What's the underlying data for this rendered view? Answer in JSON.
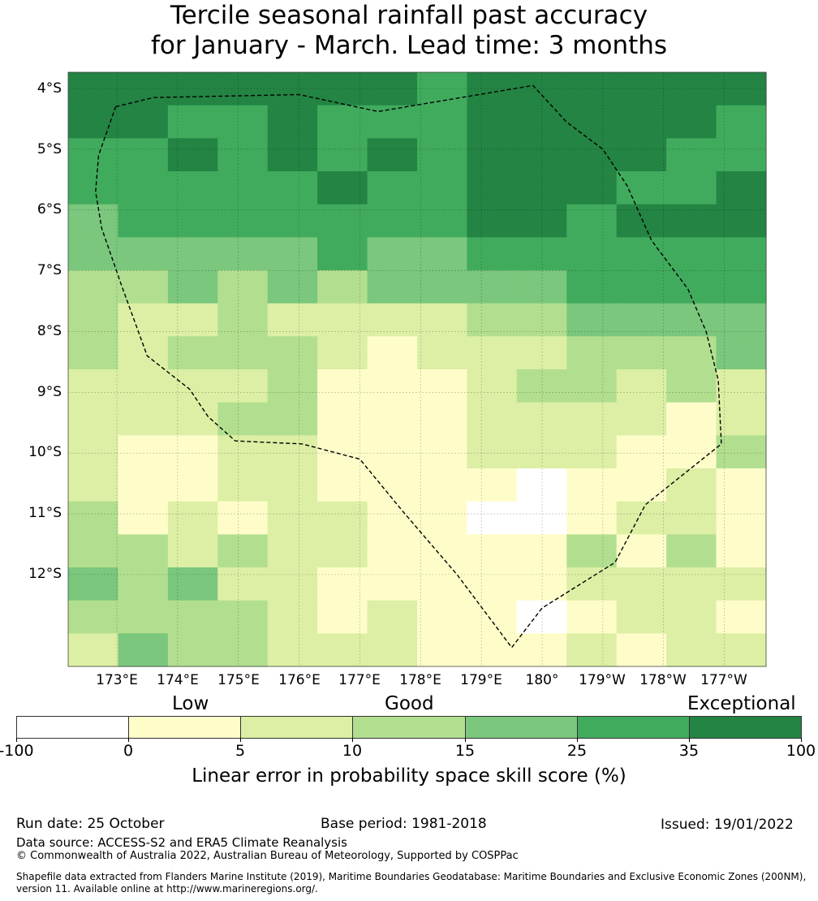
{
  "title": {
    "line1": "Tercile seasonal rainfall past accuracy",
    "line2": "for January - March. Lead time: 3 months"
  },
  "map": {
    "lat_labels": [
      "4°S",
      "5°S",
      "6°S",
      "7°S",
      "8°S",
      "9°S",
      "10°S",
      "11°S",
      "12°S"
    ],
    "lon_labels": [
      "173°E",
      "174°E",
      "175°E",
      "176°E",
      "177°E",
      "178°E",
      "179°E",
      "180°",
      "179°W",
      "178°W",
      "177°W"
    ],
    "bins_legend": "Each grid cell value is the colour-bin index 0..6 of the skill score",
    "grid": [
      [
        6,
        6,
        6,
        6,
        6,
        6,
        6,
        5,
        6,
        6,
        6,
        6,
        6,
        6
      ],
      [
        6,
        6,
        5,
        5,
        6,
        5,
        5,
        5,
        6,
        6,
        6,
        6,
        6,
        5
      ],
      [
        5,
        5,
        6,
        5,
        6,
        5,
        6,
        5,
        6,
        6,
        6,
        6,
        5,
        5
      ],
      [
        5,
        5,
        5,
        5,
        5,
        6,
        5,
        5,
        6,
        6,
        6,
        5,
        5,
        6
      ],
      [
        4,
        5,
        5,
        5,
        5,
        5,
        5,
        5,
        6,
        6,
        5,
        6,
        6,
        6
      ],
      [
        4,
        4,
        4,
        4,
        4,
        5,
        4,
        4,
        5,
        5,
        5,
        5,
        5,
        5
      ],
      [
        3,
        3,
        4,
        3,
        4,
        3,
        4,
        4,
        4,
        4,
        5,
        5,
        5,
        5
      ],
      [
        3,
        2,
        2,
        3,
        2,
        2,
        2,
        2,
        3,
        3,
        4,
        4,
        4,
        4
      ],
      [
        3,
        2,
        3,
        3,
        3,
        2,
        1,
        2,
        2,
        2,
        3,
        3,
        3,
        4
      ],
      [
        2,
        2,
        2,
        2,
        3,
        1,
        1,
        1,
        2,
        3,
        3,
        2,
        3,
        2
      ],
      [
        2,
        2,
        2,
        3,
        3,
        1,
        1,
        1,
        2,
        2,
        2,
        2,
        1,
        2
      ],
      [
        2,
        1,
        1,
        2,
        2,
        1,
        1,
        1,
        2,
        2,
        2,
        1,
        1,
        3
      ],
      [
        2,
        1,
        1,
        2,
        2,
        1,
        1,
        1,
        1,
        0,
        1,
        1,
        2,
        1
      ],
      [
        3,
        1,
        2,
        1,
        2,
        2,
        1,
        1,
        0,
        0,
        1,
        2,
        2,
        1
      ],
      [
        3,
        3,
        2,
        3,
        2,
        2,
        1,
        1,
        1,
        1,
        3,
        1,
        3,
        1
      ],
      [
        4,
        3,
        4,
        2,
        2,
        1,
        1,
        1,
        1,
        1,
        2,
        2,
        2,
        2
      ],
      [
        3,
        3,
        3,
        3,
        2,
        1,
        2,
        1,
        1,
        0,
        1,
        2,
        2,
        1
      ],
      [
        2,
        4,
        3,
        3,
        2,
        2,
        2,
        1,
        1,
        1,
        2,
        1,
        2,
        2
      ]
    ],
    "boundary_lonlat": [
      [
        172.98,
        -4.3
      ],
      [
        173.6,
        -4.15
      ],
      [
        176.0,
        -4.1
      ],
      [
        177.3,
        -4.38
      ],
      [
        179.85,
        -3.95
      ],
      [
        -179.6,
        -4.55
      ],
      [
        -179.0,
        -5.0
      ],
      [
        -178.6,
        -5.6
      ],
      [
        -178.2,
        -6.5
      ],
      [
        -177.6,
        -7.3
      ],
      [
        -177.3,
        -8.0
      ],
      [
        -177.1,
        -8.8
      ],
      [
        -177.05,
        -9.85
      ],
      [
        -178.3,
        -10.85
      ],
      [
        -178.8,
        -11.8
      ],
      [
        -180.0,
        -12.55
      ],
      [
        179.5,
        -13.2
      ],
      [
        178.6,
        -12.0
      ],
      [
        177.7,
        -10.95
      ],
      [
        177.0,
        -10.1
      ],
      [
        176.05,
        -9.85
      ],
      [
        174.95,
        -9.8
      ],
      [
        174.5,
        -9.4
      ],
      [
        174.2,
        -8.95
      ],
      [
        173.5,
        -8.4
      ],
      [
        173.08,
        -7.25
      ],
      [
        172.75,
        -6.3
      ],
      [
        172.65,
        -5.7
      ],
      [
        172.7,
        -5.1
      ],
      [
        172.98,
        -4.3
      ]
    ]
  },
  "categories": [
    "Low",
    "Good",
    "Exceptional"
  ],
  "colorbar": {
    "colors": [
      "#ffffff",
      "#fefdca",
      "#dcefa4",
      "#b2df8f",
      "#7ac77d",
      "#41ab5d",
      "#238443"
    ],
    "ticks": [
      "-100",
      "0",
      "5",
      "10",
      "15",
      "25",
      "35",
      "100"
    ],
    "label": "Linear error in probability space skill score (%)"
  },
  "footer": {
    "run_date": "Run date: 25 October",
    "base_period": "Base period: 1981-2018",
    "issued": "Issued: 19/01/2022",
    "data_source": "Data source: ACCESS-S2 and ERA5 Climate Reanalysis",
    "copyright": "© Commonwealth of Australia 2022, Australian Bureau of Meteorology, Supported by COSPPac",
    "shapefile_line1": "Shapefile data extracted from Flanders Marine Institute (2019), Maritime Boundaries Geodatabase: Maritime Boundaries and Exclusive Economic Zones (200NM),",
    "shapefile_line2": "version 11. Available online at http://www.marineregions.org/."
  }
}
